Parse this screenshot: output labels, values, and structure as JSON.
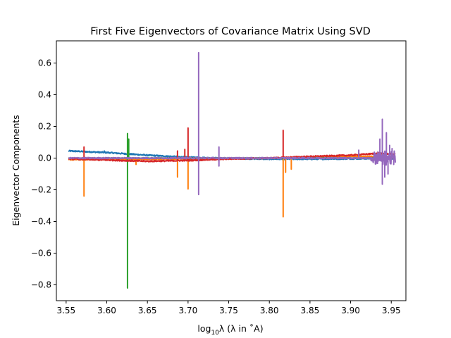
{
  "chart_data": {
    "type": "line",
    "title": "First Five Eigenvectors of Covariance Matrix Using SVD",
    "xlabel": {
      "prefix": "log",
      "sub": "10",
      "main": "λ (λ in ˚A)"
    },
    "ylabel": "Eigenvector Components",
    "xlim": [
      3.538,
      3.968
    ],
    "ylim": [
      -0.9,
      0.74
    ],
    "x_ticks": [
      "3.55",
      "3.60",
      "3.65",
      "3.70",
      "3.75",
      "3.80",
      "3.85",
      "3.90",
      "3.95"
    ],
    "y_ticks": [
      "−0.8",
      "−0.6",
      "−0.4",
      "−0.2",
      "0.0",
      "0.2",
      "0.4",
      "0.6"
    ],
    "grid": false,
    "x_range": [
      3.553,
      3.955
    ],
    "series": [
      {
        "color": "#1f77b4",
        "baseline": [
          [
            3.553,
            0.045
          ],
          [
            3.6,
            0.035
          ],
          [
            3.65,
            0.018
          ],
          [
            3.7,
            0.005
          ],
          [
            3.75,
            -0.002
          ],
          [
            3.8,
            -0.006
          ],
          [
            3.85,
            -0.006
          ],
          [
            3.9,
            -0.004
          ],
          [
            3.955,
            -0.002
          ]
        ],
        "noise": 0.004,
        "spikes": [
          [
            3.593,
            0.035
          ],
          [
            3.597,
            0.045
          ],
          [
            3.7,
            0.01
          ]
        ]
      },
      {
        "color": "#ff7f0e",
        "baseline": [
          [
            3.553,
            -0.01
          ],
          [
            3.7,
            -0.005
          ],
          [
            3.8,
            0.0
          ],
          [
            3.9,
            0.01
          ],
          [
            3.955,
            0.01
          ]
        ],
        "noise": 0.003,
        "spikes": [
          [
            3.572,
            -0.24
          ],
          [
            3.687,
            -0.12
          ],
          [
            3.7,
            -0.195
          ],
          [
            3.817,
            -0.37
          ],
          [
            3.82,
            -0.09
          ],
          [
            3.827,
            -0.07
          ],
          [
            3.636,
            -0.04
          ]
        ]
      },
      {
        "color": "#2ca02c",
        "baseline": [
          [
            3.553,
            0.0
          ],
          [
            3.955,
            0.0
          ]
        ],
        "noise": 0.002,
        "spikes": [
          [
            3.6255,
            -0.82
          ],
          [
            3.6255,
            0.155
          ],
          [
            3.627,
            0.12
          ]
        ]
      },
      {
        "color": "#d62728",
        "baseline": [
          [
            3.553,
            -0.005
          ],
          [
            3.65,
            -0.02
          ],
          [
            3.7,
            -0.015
          ],
          [
            3.75,
            -0.005
          ],
          [
            3.8,
            0.0
          ],
          [
            3.85,
            0.01
          ],
          [
            3.9,
            0.018
          ],
          [
            3.935,
            0.03
          ],
          [
            3.955,
            0.025
          ]
        ],
        "noise": 0.004,
        "spikes": [
          [
            3.572,
            0.07
          ],
          [
            3.687,
            0.045
          ],
          [
            3.696,
            0.055
          ],
          [
            3.7,
            0.19
          ],
          [
            3.817,
            0.175
          ],
          [
            3.713,
            -0.02
          ]
        ]
      },
      {
        "color": "#9467bd",
        "baseline": [
          [
            3.553,
            0.0
          ],
          [
            3.955,
            0.0
          ]
        ],
        "noise": 0.004,
        "spikes": [
          [
            3.713,
            0.665
          ],
          [
            3.713,
            -0.23
          ],
          [
            3.738,
            0.07
          ],
          [
            3.738,
            -0.05
          ],
          [
            3.939,
            0.245
          ],
          [
            3.939,
            -0.165
          ],
          [
            3.936,
            0.12
          ],
          [
            3.942,
            -0.12
          ],
          [
            3.944,
            0.16
          ],
          [
            3.946,
            -0.1
          ],
          [
            3.948,
            0.08
          ],
          [
            3.951,
            0.06
          ],
          [
            3.953,
            -0.04
          ],
          [
            3.91,
            0.05
          ]
        ],
        "burst": [
          3.925,
          3.955,
          0.045
        ]
      }
    ]
  }
}
